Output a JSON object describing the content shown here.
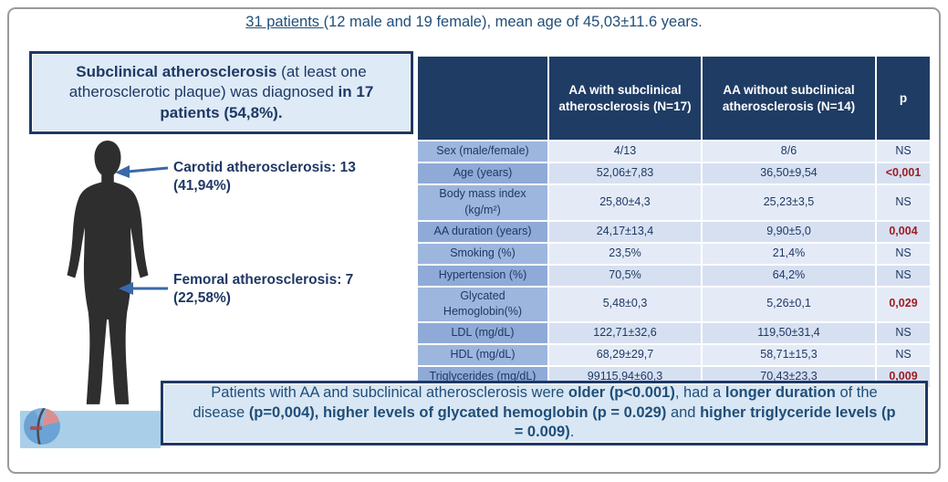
{
  "title": {
    "segments": [
      {
        "text": "31 patients ",
        "underline": true
      },
      {
        "text": "(12 male and 19 female), mean age of 45,03±11.6 years.",
        "underline": false
      }
    ]
  },
  "diagnosis_box": {
    "segments": [
      {
        "text": "Subclinical atherosclerosis",
        "bold": true
      },
      {
        "text": " (at least one atherosclerotic plaque) was diagnosed ",
        "bold": false
      },
      {
        "text": "in 17 patients (54,8%).",
        "bold": true
      }
    ]
  },
  "figure": {
    "silhouette_icon": "human-body-silhouette-icon",
    "carotid_label": "Carotid atherosclerosis: 13 (41,94%)",
    "femoral_label": "Femoral atherosclerosis: 7 (22,58%)"
  },
  "table": {
    "headers": [
      "",
      "AA with subclinical atherosclerosis (N=17)",
      "AA without subclinical atherosclerosis (N=14)",
      "p"
    ],
    "rows": [
      {
        "label": "Sex (male/female)",
        "with": "4/13",
        "without": "8/6",
        "p": "NS",
        "significant": false
      },
      {
        "label": "Age (years)",
        "with": "52,06±7,83",
        "without": "36,50±9,54",
        "p": "<0,001",
        "significant": true
      },
      {
        "label": "Body mass index (kg/m²)",
        "with": "25,80±4,3",
        "without": "25,23±3,5",
        "p": "NS",
        "significant": false
      },
      {
        "label": "AA duration (years)",
        "with": "24,17±13,4",
        "without": "9,90±5,0",
        "p": "0,004",
        "significant": true
      },
      {
        "label": "Smoking (%)",
        "with": "23,5%",
        "without": "21,4%",
        "p": "NS",
        "significant": false
      },
      {
        "label": "Hypertension (%)",
        "with": "70,5%",
        "without": "64,2%",
        "p": "NS",
        "significant": false
      },
      {
        "label": "Glycated Hemoglobin(%)",
        "with": "5,48±0,3",
        "without": "5,26±0,1",
        "p": "0,029",
        "significant": true
      },
      {
        "label": "LDL (mg/dL)",
        "with": "122,71±32,6",
        "without": "119,50±31,4",
        "p": "NS",
        "significant": false
      },
      {
        "label": "HDL (mg/dL)",
        "with": "68,29±29,7",
        "without": "58,71±15,3",
        "p": "NS",
        "significant": false
      },
      {
        "label": "Triglycerides (mg/dL)",
        "with": "99115,94±60,3",
        "without": "70,43±23,3",
        "p": "0,009",
        "significant": true
      }
    ]
  },
  "conclusion": {
    "segments": [
      {
        "text": "Patients with AA and subclinical atherosclerosis were ",
        "bold": false
      },
      {
        "text": "older (p<0.001)",
        "bold": true
      },
      {
        "text": ", had a ",
        "bold": false
      },
      {
        "text": "longer duration",
        "bold": true
      },
      {
        "text": " of the disease ",
        "bold": false
      },
      {
        "text": "(p=0,004), higher levels of glycated hemoglobin (p = 0.029)",
        "bold": true
      },
      {
        "text": " and ",
        "bold": false
      },
      {
        "text": "higher triglyceride levels (p = 0.009)",
        "bold": true
      },
      {
        "text": ".",
        "bold": false
      }
    ]
  },
  "colors": {
    "navy": "#1f3864",
    "navy_text": "#1f4e79",
    "header_bg": "#1f3c64",
    "label_cell_a": "#9db6de",
    "label_cell_b": "#8faad6",
    "data_cell_a": "#e4ebf7",
    "data_cell_b": "#d6e0f1",
    "sig_red": "#9e1d22",
    "box_fill": "#deebf7",
    "conclusion_fill": "#d9e7f4",
    "band_blue": "#a9cfe8",
    "silhouette": "#2e2e2e",
    "arrow_blue": "#3a68a8",
    "frame_gray": "#9a9a9a"
  }
}
